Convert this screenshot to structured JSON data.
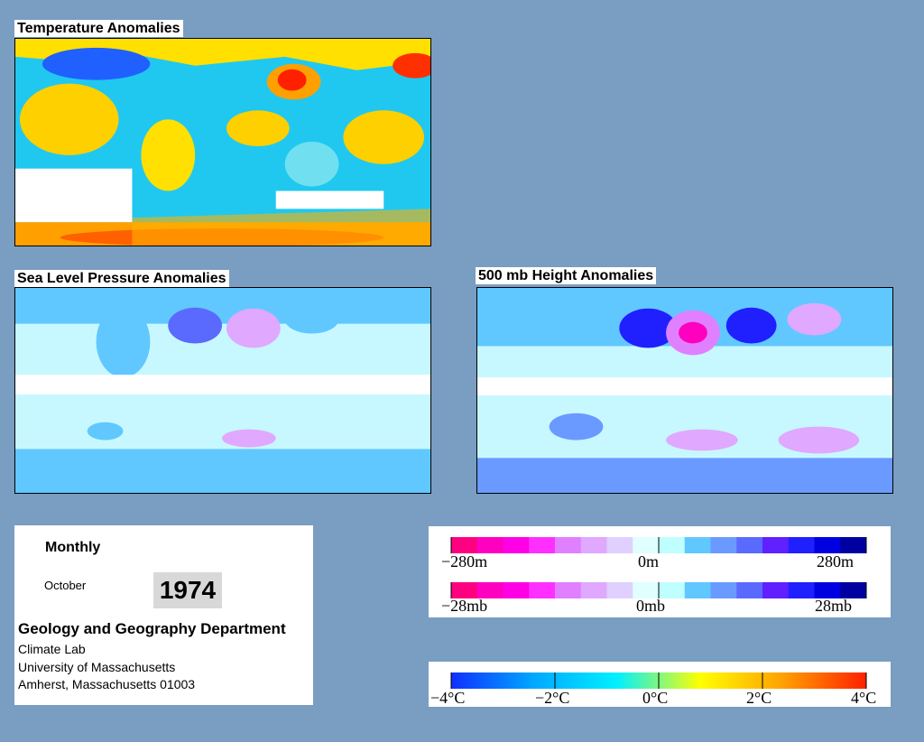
{
  "panels": {
    "temperature": {
      "title": "Temperature Anomalies"
    },
    "slp": {
      "title": "Sea Level Pressure Anomalies"
    },
    "height": {
      "title": "500 mb Height Anomalies"
    }
  },
  "info": {
    "frequency": "Monthly",
    "month": "October",
    "year": "1974",
    "department": "Geology and Geography Department",
    "lines": [
      "Climate Lab",
      "University of Massachusetts",
      "Amherst, Massachusetts 01003"
    ]
  },
  "legend_height": {
    "labels": [
      "−280m",
      "0m",
      "280m"
    ],
    "colors": [
      "#ff0080",
      "#ff00c0",
      "#ff00e6",
      "#ff30ff",
      "#e080ff",
      "#e0a8ff",
      "#e0d0ff",
      "#e0ffff",
      "#c0ffff",
      "#60c8ff",
      "#6a9aff",
      "#5a6aff",
      "#6020ff",
      "#2020ff",
      "#0000e0",
      "#0000a0"
    ]
  },
  "legend_pressure": {
    "labels": [
      "−28mb",
      "0mb",
      "28mb"
    ]
  },
  "legend_temperature": {
    "labels": [
      "−4°C",
      "−2°C",
      "0°C",
      "2°C",
      "4°C"
    ],
    "gradient": [
      "#1030ff",
      "#00a8ff",
      "#00f0ff",
      "#ffff00",
      "#ffa000",
      "#ff2000"
    ]
  }
}
